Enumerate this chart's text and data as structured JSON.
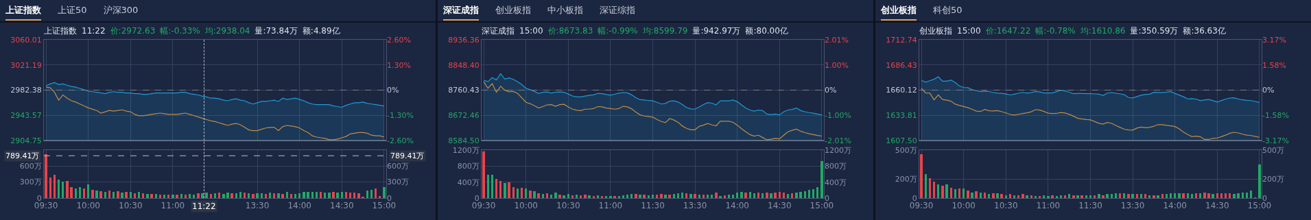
{
  "chart_data": [
    {
      "type": "line",
      "annotations": [
        "上证指数",
        "上证50",
        "沪深300"
      ],
      "subtitle": "上证指数 11:22 价:2972.63 幅:-0.33% 均:2938.04 量:73.84万 额:4.89亿",
      "grid": true,
      "tick_labels": "y",
      "categories": [
        null,
        null,
        null,
        null,
        null,
        null,
        null,
        null,
        null,
        null,
        null,
        null,
        null,
        null,
        null,
        null,
        null,
        null,
        null,
        null,
        null,
        null,
        null,
        null,
        null,
        null,
        null,
        null,
        null,
        null,
        null,
        null,
        null,
        null,
        null,
        null,
        null,
        null,
        null,
        null,
        null,
        null,
        null,
        null,
        null,
        null,
        null,
        null,
        null,
        null,
        null,
        null,
        null,
        null,
        null,
        null,
        null,
        null,
        null,
        null,
        null,
        null,
        null,
        null,
        null,
        null,
        null,
        null,
        null,
        null,
        null,
        null,
        null,
        null,
        null,
        null,
        null,
        null,
        null,
        null,
        null
      ],
      "ylim": [
        2904.75,
        3060.01
      ],
      "yticks": [
        2904.75,
        2943.57,
        2982.38,
        3021.19,
        3060.01
      ],
      "y2lim": [
        -2.6,
        2.6
      ],
      "y2ticks": [
        {
          "value": -2.6,
          "label": "-2.60%"
        },
        {
          "value": -1.3,
          "label": "-1.30%"
        },
        {
          "value": 0,
          "label": "0%"
        },
        {
          "value": 1.3,
          "label": "1.30%"
        },
        {
          "value": 2.6,
          "label": "2.60%"
        }
      ],
      "ref_lines": [
        {
          "axis": "y",
          "value": 2982.38,
          "color": "#7f7b70",
          "line_style": "dashed"
        }
      ],
      "series": [
        {
          "type": "area",
          "color": "#1e9ad6",
          "values": [
            2989,
            2992,
            2994,
            2991,
            2992,
            2990,
            2988,
            2987,
            2985,
            2983,
            2981,
            2980,
            2979,
            2978,
            2977,
            2979,
            2980,
            2979,
            2979,
            2978,
            2978,
            2977,
            2977,
            2976,
            2976,
            2977,
            2978,
            2978,
            2978,
            2978,
            2978,
            2978,
            2979,
            2979,
            2977,
            2976,
            2975,
            2973,
            2972,
            2970,
            2970,
            2969,
            2967,
            2966,
            2968,
            2969,
            2967,
            2966,
            2963,
            2961,
            2963,
            2965,
            2965,
            2966,
            2967,
            2965,
            2970,
            2968,
            2969,
            2970,
            2968,
            2966,
            2963,
            2961,
            2960,
            2960,
            2960,
            2960,
            2958,
            2957,
            2956,
            2959,
            2961,
            2963,
            2963,
            2964,
            2962,
            2961,
            2960,
            2959,
            2958
          ]
        },
        {
          "type": "line",
          "color": "#c48a45",
          "values": [
            2987,
            2986,
            2979,
            2967,
            2975,
            2970,
            2966,
            2964,
            2961,
            2958,
            2955,
            2953,
            2951,
            2947,
            2949,
            2951,
            2950,
            2951,
            2952,
            2950,
            2949,
            2945,
            2943,
            2943,
            2944,
            2945,
            2946,
            2947,
            2946,
            2945,
            2945,
            2945,
            2946,
            2947,
            2945,
            2943,
            2941,
            2939,
            2937,
            2935,
            2934,
            2932,
            2930,
            2928,
            2930,
            2931,
            2929,
            2925,
            2921,
            2920,
            2920,
            2922,
            2924,
            2925,
            2925,
            2920,
            2926,
            2928,
            2927,
            2926,
            2924,
            2920,
            2917,
            2912,
            2910,
            2909,
            2908,
            2906,
            2906,
            2907,
            2909,
            2911,
            2915,
            2916,
            2917,
            2917,
            2916,
            2913,
            2912,
            2912,
            2910
          ]
        }
      ]
    },
    {
      "type": "bar",
      "grid": true,
      "annotations": [
        "11:22"
      ],
      "categories": [
        "09:30",
        null,
        null,
        null,
        null,
        null,
        null,
        null,
        null,
        null,
        "10:00",
        null,
        null,
        null,
        null,
        null,
        null,
        null,
        null,
        null,
        "10:30",
        null,
        null,
        null,
        null,
        null,
        null,
        null,
        null,
        null,
        "11:00",
        null,
        null,
        null,
        null,
        null,
        null,
        null,
        null,
        null,
        null,
        null,
        null,
        null,
        null,
        null,
        null,
        null,
        null,
        null,
        "13:30",
        null,
        null,
        null,
        null,
        null,
        null,
        null,
        null,
        null,
        "14:00",
        null,
        null,
        null,
        null,
        null,
        null,
        null,
        null,
        null,
        "14:30",
        null,
        null,
        null,
        null,
        null,
        null,
        null,
        null,
        null,
        "15:00"
      ],
      "ylim": [
        0,
        895
      ],
      "yticks": [
        0,
        {
          "value": 300,
          "label": "300万"
        },
        {
          "value": 600,
          "label": "600万"
        }
      ],
      "y2lim": [
        0,
        895
      ],
      "y2ticks": [
        {
          "value": 0,
          "label": "0"
        },
        {
          "value": 300,
          "label": "300万"
        },
        {
          "value": 600,
          "label": "600万"
        }
      ],
      "ref_lines": [
        {
          "axis": "y",
          "value": 789.41,
          "label": "789.41万",
          "color": "#b8bcc6",
          "line_style": "dashed"
        }
      ],
      "values": [
        820,
        380,
        440,
        350,
        310,
        320,
        210,
        180,
        210,
        180,
        250,
        150,
        140,
        130,
        120,
        140,
        110,
        130,
        100,
        120,
        120,
        90,
        110,
        90,
        80,
        80,
        80,
        70,
        70,
        60,
        60,
        70,
        80,
        60,
        80,
        70,
        90,
        90,
        100,
        80,
        90,
        100,
        80,
        100,
        90,
        90,
        110,
        100,
        90,
        80,
        90,
        90,
        80,
        100,
        90,
        90,
        80,
        110,
        80,
        80,
        90,
        110,
        120,
        110,
        120,
        110,
        100,
        100,
        110,
        100,
        110,
        120,
        100,
        100,
        90,
        30,
        140,
        150,
        180,
        40,
        210
      ],
      "colors": [
        "#e8434b",
        "#e8434b",
        "#e8434b",
        "#23a865",
        "#23a865",
        "#e8434b",
        "#e8434b",
        "#23a865",
        "#23a865",
        "#e8434b",
        "#23a865",
        "#e8434b",
        "#23a865",
        "#e8434b",
        "#23a865",
        "#e8434b",
        "#23a865",
        "#e8434b",
        "#23a865",
        "#e8434b",
        "#23a865",
        "#e8434b",
        "#23a865",
        "#e8434b",
        "#23a865",
        "#e8434b",
        "#23a865",
        "#e8434b",
        "#23a865",
        "#e8434b",
        "#23a865",
        "#e8434b",
        "#23a865",
        "#e8434b",
        "#23a865",
        "#23a865",
        "#e8434b",
        "#23a865",
        "#23a865",
        "#e8434b",
        "#23a865",
        "#e8434b",
        "#23a865",
        "#23a865",
        "#e8434b",
        "#23a865",
        "#23a865",
        "#e8434b",
        "#23a865",
        "#e8434b",
        "#23a865",
        "#23a865",
        "#e8434b",
        "#23a865",
        "#e8434b",
        "#23a865",
        "#e8434b",
        "#23a865",
        "#e8434b",
        "#23a865",
        "#23a865",
        "#23a865",
        "#23a865",
        "#23a865",
        "#23a865",
        "#e8434b",
        "#23a865",
        "#23a865",
        "#e8434b",
        "#23a865",
        "#23a865",
        "#e8434b",
        "#e8434b",
        "#e8434b",
        "#e8434b",
        "#e8434b",
        "#23a865",
        "#23a865",
        "#e8434b",
        "#e8434b",
        "#23a865"
      ]
    },
    {
      "type": "line",
      "annotations": [
        "深证成指",
        "创业板指",
        "中小板指",
        "深证综指"
      ],
      "subtitle": "深证成指 15:00 价:8673.83 幅:-0.99% 均:8599.79 量:942.97万 额:80.00亿",
      "grid": true,
      "tick_labels": "y",
      "categories": [
        null,
        null,
        null,
        null,
        null,
        null,
        null,
        null,
        null,
        null,
        null,
        null,
        null,
        null,
        null,
        null,
        null,
        null,
        null,
        null,
        null,
        null,
        null,
        null,
        null,
        null,
        null,
        null,
        null,
        null,
        null,
        null,
        null,
        null,
        null,
        null,
        null,
        null,
        null,
        null,
        null,
        null,
        null,
        null,
        null,
        null,
        null,
        null,
        null,
        null,
        null,
        null,
        null,
        null,
        null,
        null,
        null,
        null,
        null,
        null,
        null,
        null,
        null,
        null,
        null,
        null,
        null,
        null,
        null,
        null,
        null,
        null,
        null,
        null,
        null,
        null,
        null,
        null,
        null,
        null,
        null
      ],
      "ylim": [
        8584.5,
        8936.36
      ],
      "yticks": [
        {
          "value": 8584.5,
          "label": "8584.50"
        },
        8672.46,
        8760.43,
        {
          "value": 8848.4,
          "label": "8848.40"
        },
        8936.36
      ],
      "y2lim": [
        -2.01,
        2.01
      ],
      "y2ticks": [
        {
          "value": -2.01,
          "label": "-2.01%"
        },
        {
          "value": -1,
          "label": "-1.00%"
        },
        {
          "value": 0,
          "label": "0%"
        },
        {
          "value": 1,
          "label": "1.00%"
        },
        {
          "value": 2.01,
          "label": "2.01%"
        }
      ],
      "ref_lines": [
        {
          "axis": "y",
          "value": 8760.43,
          "color": "#7f7b70",
          "line_style": "dashed"
        }
      ],
      "series": [
        {
          "type": "area",
          "color": "#1e9ad6",
          "values": [
            8795,
            8790,
            8804,
            8796,
            8818,
            8799,
            8803,
            8798,
            8790,
            8780,
            8767,
            8762,
            8756,
            8749,
            8753,
            8754,
            8750,
            8753,
            8754,
            8753,
            8747,
            8740,
            8737,
            8737,
            8740,
            8742,
            8744,
            8749,
            8748,
            8745,
            8743,
            8746,
            8750,
            8752,
            8751,
            8744,
            8734,
            8727,
            8726,
            8724,
            8723,
            8718,
            8712,
            8714,
            8722,
            8723,
            8719,
            8710,
            8700,
            8695,
            8694,
            8702,
            8710,
            8717,
            8715,
            8709,
            8723,
            8723,
            8723,
            8726,
            8720,
            8709,
            8698,
            8691,
            8687,
            8691,
            8689,
            8677,
            8675,
            8677,
            8674,
            8685,
            8691,
            8693,
            8698,
            8689,
            8685,
            8682,
            8680,
            8677,
            8674
          ]
        },
        {
          "type": "line",
          "color": "#c48a45",
          "values": [
            8790,
            8767,
            8783,
            8753,
            8774,
            8760,
            8755,
            8756,
            8749,
            8734,
            8718,
            8713,
            8706,
            8698,
            8703,
            8709,
            8710,
            8704,
            8710,
            8711,
            8702,
            8694,
            8690,
            8689,
            8694,
            8694,
            8696,
            8703,
            8702,
            8698,
            8696,
            8694,
            8696,
            8704,
            8702,
            8695,
            8684,
            8674,
            8670,
            8668,
            8666,
            8658,
            8651,
            8647,
            8661,
            8656,
            8648,
            8635,
            8627,
            8622,
            8622,
            8634,
            8638,
            8644,
            8639,
            8636,
            8652,
            8652,
            8652,
            8648,
            8638,
            8626,
            8615,
            8605,
            8600,
            8603,
            8595,
            8587,
            8589,
            8592,
            8590,
            8603,
            8615,
            8620,
            8624,
            8617,
            8612,
            8608,
            8605,
            8602,
            8600
          ]
        }
      ]
    },
    {
      "type": "bar",
      "grid": true,
      "categories": [
        "09:30",
        null,
        null,
        null,
        null,
        null,
        null,
        null,
        null,
        null,
        "10:00",
        null,
        null,
        null,
        null,
        null,
        null,
        null,
        null,
        null,
        "10:30",
        null,
        null,
        null,
        null,
        null,
        null,
        null,
        null,
        null,
        "11:00",
        null,
        null,
        null,
        null,
        null,
        null,
        null,
        null,
        null,
        "11:30",
        null,
        null,
        null,
        null,
        null,
        null,
        null,
        null,
        null,
        "13:30",
        null,
        null,
        null,
        null,
        null,
        null,
        null,
        null,
        null,
        "14:00",
        null,
        null,
        null,
        null,
        null,
        null,
        null,
        null,
        null,
        "14:30",
        null,
        null,
        null,
        null,
        null,
        null,
        null,
        null,
        null,
        "15:00"
      ],
      "ylim": [
        0,
        1200
      ],
      "yticks": [
        0,
        {
          "value": 400,
          "label": "400万"
        },
        {
          "value": 800,
          "label": "800万"
        },
        {
          "value": 1200,
          "label": "1200万"
        }
      ],
      "y2lim": [
        0,
        1200
      ],
      "y2ticks": [
        {
          "value": 0,
          "label": "0"
        },
        {
          "value": 400,
          "label": "400万"
        },
        {
          "value": 800,
          "label": "800万"
        },
        {
          "value": 1200,
          "label": "1200万"
        }
      ],
      "values": [
        1160,
        590,
        590,
        480,
        430,
        370,
        400,
        280,
        240,
        250,
        240,
        190,
        170,
        120,
        110,
        120,
        90,
        140,
        90,
        70,
        110,
        70,
        90,
        70,
        90,
        70,
        60,
        70,
        60,
        60,
        60,
        60,
        50,
        70,
        90,
        110,
        100,
        90,
        90,
        70,
        90,
        90,
        100,
        90,
        90,
        110,
        120,
        140,
        120,
        110,
        110,
        90,
        90,
        90,
        90,
        140,
        60,
        70,
        90,
        90,
        140,
        150,
        140,
        160,
        120,
        140,
        120,
        140,
        120,
        140,
        160,
        140,
        110,
        120,
        140,
        160,
        170,
        200,
        220,
        280,
        930
      ],
      "colors": [
        "#e8434b",
        "#23a865",
        "#23a865",
        "#e8434b",
        "#e8434b",
        "#23a865",
        "#e8434b",
        "#e8434b",
        "#23a865",
        "#e8434b",
        "#23a865",
        "#e8434b",
        "#23a865",
        "#e8434b",
        "#23a865",
        "#e8434b",
        "#23a865",
        "#23a865",
        "#e8434b",
        "#23a865",
        "#23a865",
        "#e8434b",
        "#23a865",
        "#e8434b",
        "#e8434b",
        "#23a865",
        "#e8434b",
        "#23a865",
        "#e8434b",
        "#23a865",
        "#23a865",
        "#e8434b",
        "#23a865",
        "#23a865",
        "#23a865",
        "#23a865",
        "#e8434b",
        "#23a865",
        "#e8434b",
        "#23a865",
        "#23a865",
        "#e8434b",
        "#e8434b",
        "#23a865",
        "#e8434b",
        "#23a865",
        "#23a865",
        "#23a865",
        "#e8434b",
        "#23a865",
        "#e8434b",
        "#23a865",
        "#e8434b",
        "#23a865",
        "#23a865",
        "#e8434b",
        "#23a865",
        "#e8434b",
        "#23a865",
        "#23a865",
        "#23a865",
        "#23a865",
        "#e8434b",
        "#23a865",
        "#23a865",
        "#e8434b",
        "#23a865",
        "#e8434b",
        "#23a865",
        "#e8434b",
        "#e8434b",
        "#e8434b",
        "#23a865",
        "#e8434b",
        "#23a865",
        "#23a865",
        "#23a865",
        "#23a865",
        "#23a865",
        "#23a865",
        "#23a865"
      ]
    },
    {
      "type": "line",
      "annotations": [
        "创业板指",
        "科创50"
      ],
      "subtitle": "创业板指 15:00 价:1647.22 幅:-0.78% 均:1610.86 量:350.59万 额:36.63亿",
      "grid": true,
      "tick_labels": "y",
      "categories": [
        null,
        null,
        null,
        null,
        null,
        null,
        null,
        null,
        null,
        null,
        null,
        null,
        null,
        null,
        null,
        null,
        null,
        null,
        null,
        null,
        null,
        null,
        null,
        null,
        null,
        null,
        null,
        null,
        null,
        null,
        null,
        null,
        null,
        null,
        null,
        null,
        null,
        null,
        null,
        null,
        null,
        null,
        null,
        null,
        null,
        null,
        null,
        null,
        null,
        null,
        null,
        null,
        null,
        null,
        null,
        null,
        null,
        null,
        null,
        null,
        null,
        null,
        null,
        null,
        null,
        null,
        null,
        null,
        null,
        null,
        null,
        null,
        null,
        null,
        null,
        null,
        null,
        null,
        null,
        null,
        null
      ],
      "ylim": [
        1607.5,
        1712.74
      ],
      "yticks": [
        {
          "value": 1607.5,
          "label": "1607.50"
        },
        1633.81,
        1660.12,
        1686.43,
        1712.74
      ],
      "y2lim": [
        -3.17,
        3.17
      ],
      "y2ticks": [
        {
          "value": -3.17,
          "label": "-3.17%"
        },
        {
          "value": -1.58,
          "label": "-1.58%"
        },
        {
          "value": 0,
          "label": "0%"
        },
        {
          "value": 1.58,
          "label": "1.58%"
        },
        {
          "value": 3.17,
          "label": "3.17%"
        }
      ],
      "ref_lines": [
        {
          "axis": "y",
          "value": 1660.12,
          "color": "#7f7b70",
          "line_style": "dashed"
        }
      ],
      "series": [
        {
          "type": "area",
          "color": "#1e9ad6",
          "values": [
            1670.3,
            1668.5,
            1670.0,
            1671.5,
            1674.1,
            1669.5,
            1669.5,
            1670.6,
            1668.1,
            1664.4,
            1663.0,
            1662.7,
            1660.7,
            1659.4,
            1658.6,
            1658.9,
            1658.7,
            1657.6,
            1657.0,
            1656.8,
            1656.1,
            1655.1,
            1655.9,
            1656.9,
            1657.8,
            1657.0,
            1657.5,
            1658.7,
            1658.2,
            1657.2,
            1657.2,
            1657.2,
            1658.6,
            1660.0,
            1659.2,
            1658.0,
            1656.4,
            1656.6,
            1656.7,
            1656.5,
            1656.4,
            1656.2,
            1655.9,
            1654.5,
            1657.1,
            1657.6,
            1656.9,
            1656.2,
            1655.4,
            1652.4,
            1652.0,
            1653.4,
            1654.8,
            1655.5,
            1655.9,
            1657.9,
            1657.7,
            1657.5,
            1658.0,
            1658.6,
            1656.6,
            1655.0,
            1653.2,
            1651.0,
            1651.2,
            1650.8,
            1649.1,
            1649.8,
            1650.4,
            1649.1,
            1647.7,
            1649.3,
            1650.8,
            1651.9,
            1652.2,
            1650.8,
            1650.0,
            1649.5,
            1649.2,
            1648.3,
            1647.2
          ]
        },
        {
          "type": "line",
          "color": "#c48a45",
          "values": [
            1661.9,
            1657.2,
            1657.0,
            1650.0,
            1655.1,
            1650.4,
            1649.6,
            1648.6,
            1645.5,
            1644.1,
            1643.0,
            1641.8,
            1640.1,
            1638.2,
            1637.8,
            1640.0,
            1638.6,
            1638.4,
            1638.7,
            1637.6,
            1636.3,
            1634.7,
            1634.1,
            1634.9,
            1635.7,
            1636.4,
            1637.5,
            1639.7,
            1639.3,
            1637.8,
            1636.1,
            1635.7,
            1635.8,
            1636.8,
            1636.2,
            1634.8,
            1632.8,
            1630.7,
            1630.0,
            1629.4,
            1629.1,
            1627.3,
            1625.5,
            1624.6,
            1626.3,
            1625.4,
            1623.2,
            1621.2,
            1619.3,
            1618.5,
            1618.3,
            1620.5,
            1621.6,
            1620.8,
            1621.2,
            1622.4,
            1624.1,
            1624.1,
            1623.4,
            1622.8,
            1622.1,
            1619.6,
            1616.2,
            1613.7,
            1611.6,
            1612.1,
            1611.4,
            1608.6,
            1608.6,
            1609.8,
            1610.2,
            1611.5,
            1613.1,
            1615.1,
            1616.1,
            1615.4,
            1614.1,
            1613.1,
            1612.7,
            1611.7,
            1610.9
          ]
        }
      ]
    },
    {
      "type": "bar",
      "grid": true,
      "categories": [
        "09:30",
        null,
        null,
        null,
        null,
        null,
        null,
        null,
        null,
        null,
        "10:00",
        null,
        null,
        null,
        null,
        null,
        null,
        null,
        null,
        null,
        "10:30",
        null,
        null,
        null,
        null,
        null,
        null,
        null,
        null,
        null,
        "11:00",
        null,
        null,
        null,
        null,
        null,
        null,
        null,
        null,
        null,
        "11:30",
        null,
        null,
        null,
        null,
        null,
        null,
        null,
        null,
        null,
        "13:30",
        null,
        null,
        null,
        null,
        null,
        null,
        null,
        null,
        null,
        "14:00",
        null,
        null,
        null,
        null,
        null,
        null,
        null,
        null,
        null,
        "14:30",
        null,
        null,
        null,
        null,
        null,
        null,
        null,
        null,
        null,
        "15:00"
      ],
      "ylim": [
        0,
        500
      ],
      "yticks": [
        0,
        {
          "value": 200,
          "label": "200万"
        },
        {
          "value": 500,
          "label": "500万"
        }
      ],
      "y2lim": [
        0,
        500
      ],
      "y2ticks": [
        {
          "value": 0,
          "label": "0"
        },
        {
          "value": 200,
          "label": "200万"
        },
        {
          "value": 500,
          "label": "500万"
        }
      ],
      "values": [
        460,
        250,
        210,
        170,
        140,
        130,
        140,
        110,
        90,
        100,
        100,
        80,
        60,
        70,
        60,
        60,
        40,
        50,
        50,
        40,
        30,
        40,
        30,
        30,
        40,
        30,
        30,
        20,
        20,
        30,
        20,
        30,
        20,
        30,
        30,
        40,
        30,
        30,
        30,
        30,
        30,
        30,
        40,
        30,
        40,
        40,
        50,
        50,
        50,
        40,
        40,
        40,
        40,
        40,
        30,
        30,
        30,
        40,
        40,
        50,
        50,
        50,
        50,
        50,
        40,
        50,
        50,
        60,
        50,
        40,
        50,
        50,
        50,
        50,
        40,
        50,
        60,
        60,
        80,
        10,
        350
      ],
      "colors": [
        "#e8434b",
        "#23a865",
        "#e8434b",
        "#e8434b",
        "#23a865",
        "#e8434b",
        "#23a865",
        "#e8434b",
        "#23a865",
        "#e8434b",
        "#23a865",
        "#e8434b",
        "#23a865",
        "#e8434b",
        "#23a865",
        "#e8434b",
        "#23a865",
        "#e8434b",
        "#23a865",
        "#e8434b",
        "#23a865",
        "#e8434b",
        "#23a865",
        "#e8434b",
        "#e8434b",
        "#23a865",
        "#e8434b",
        "#23a865",
        "#e8434b",
        "#23a865",
        "#23a865",
        "#e8434b",
        "#23a865",
        "#23a865",
        "#e8434b",
        "#23a865",
        "#e8434b",
        "#23a865",
        "#e8434b",
        "#23a865",
        "#23a865",
        "#e8434b",
        "#23a865",
        "#e8434b",
        "#23a865",
        "#23a865",
        "#23a865",
        "#e8434b",
        "#23a865",
        "#e8434b",
        "#23a865",
        "#e8434b",
        "#23a865",
        "#e8434b",
        "#23a865",
        "#e8434b",
        "#23a865",
        "#e8434b",
        "#23a865",
        "#23a865",
        "#23a865",
        "#23a865",
        "#e8434b",
        "#23a865",
        "#23a865",
        "#e8434b",
        "#23a865",
        "#e8434b",
        "#e8434b",
        "#23a865",
        "#e8434b",
        "#e8434b",
        "#e8434b",
        "#e8434b",
        "#23a865",
        "#23a865",
        "#23a865",
        "#23a865",
        "#23a865",
        "#e8434b",
        "#23a865"
      ]
    }
  ]
}
